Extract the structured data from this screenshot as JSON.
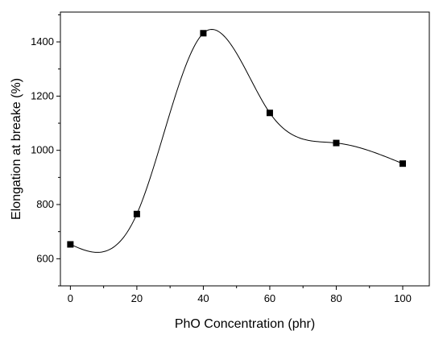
{
  "chart_data": {
    "type": "scatter",
    "xlabel": "PhO Concentration (phr)",
    "ylabel": "Elongation at breake (%)",
    "xlim": [
      -3,
      108
    ],
    "ylim": [
      500,
      1510
    ],
    "x_ticks": [
      0,
      20,
      40,
      60,
      80,
      100
    ],
    "y_ticks": [
      600,
      800,
      1000,
      1200,
      1400
    ],
    "x_tick_labels": [
      "0",
      "20",
      "40",
      "60",
      "80",
      "100"
    ],
    "y_tick_labels": [
      "600",
      "800",
      "1000",
      "1200",
      "1400"
    ],
    "series": [
      {
        "x": [
          0,
          20,
          40,
          60,
          80,
          100
        ],
        "y": [
          653,
          765,
          1432,
          1138,
          1027,
          951
        ],
        "marker": "square",
        "line": "smooth spline",
        "color": "#000000"
      }
    ],
    "grid": false,
    "legend": "none"
  }
}
